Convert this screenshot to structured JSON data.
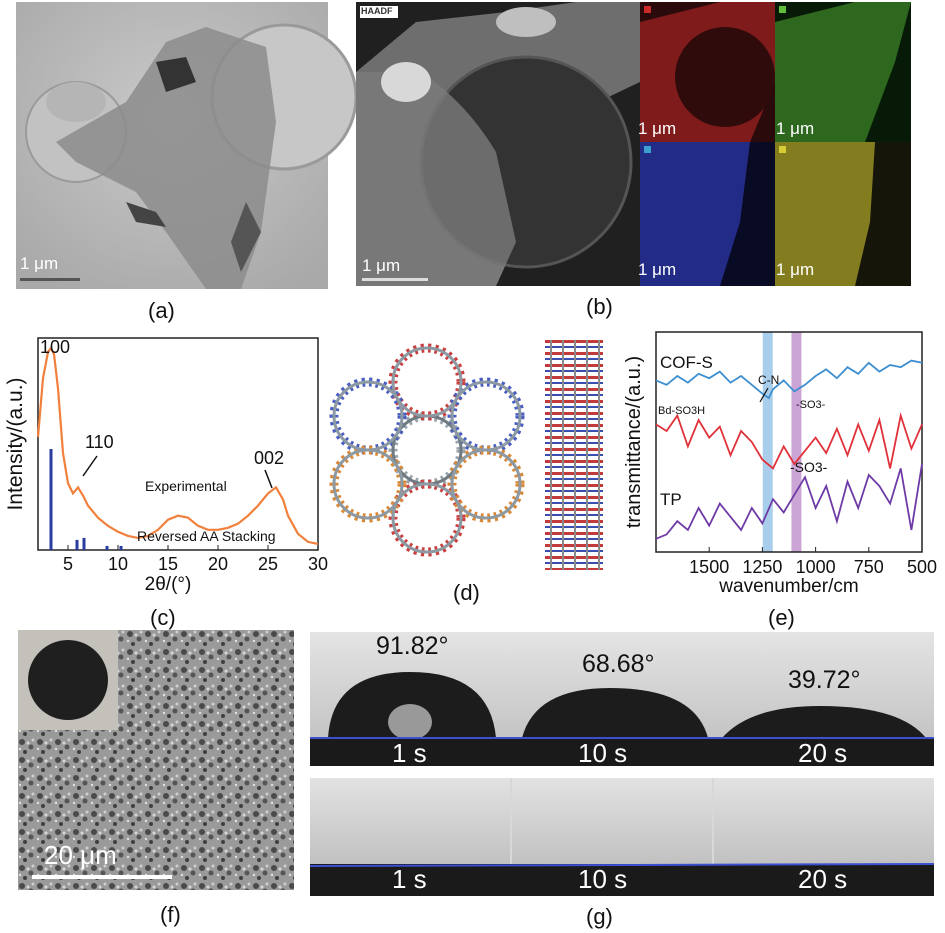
{
  "panels": {
    "a": {
      "label": "(a)",
      "scale": "1 μm"
    },
    "b": {
      "label": "(b)",
      "badge": "HAADF",
      "scale_main": "1 μm",
      "maps": [
        {
          "color": "#c92a2a",
          "scale": "1 μm"
        },
        {
          "color": "#5fbf3a",
          "scale": "1 μm"
        },
        {
          "color": "#3b4fd0",
          "scale": "1 μm"
        },
        {
          "color": "#d6cc35",
          "scale": "1 μm"
        }
      ]
    },
    "c": {
      "label": "(c)"
    },
    "d": {
      "label": "(d)"
    },
    "e": {
      "label": "(e)"
    },
    "f": {
      "label": "(f)",
      "scale": "20 μm"
    },
    "g": {
      "label": "(g)",
      "angles": [
        "91.82°",
        "68.68°",
        "39.72°"
      ],
      "times_top": [
        "1 s",
        "10 s",
        "20 s"
      ],
      "times_bottom": [
        "1 s",
        "10 s",
        "20 s"
      ]
    }
  },
  "chart_data": [
    {
      "type": "line",
      "panel": "c",
      "ylabel": "Intensity/(a.u.)",
      "xlabel": "2θ/(°)",
      "xlim": [
        2,
        30
      ],
      "xticks": [
        "5",
        "10",
        "15",
        "20",
        "25",
        "30"
      ],
      "series": [
        {
          "name": "Experimental",
          "color": "#f0803c",
          "x": [
            2.0,
            2.5,
            3.0,
            3.3,
            3.6,
            4.0,
            4.5,
            5.0,
            5.5,
            6.0,
            6.5,
            7.0,
            8.0,
            9.0,
            10.0,
            11.0,
            12.0,
            13.0,
            14.0,
            15.0,
            16.0,
            17.0,
            18.0,
            19.0,
            20.0,
            21.0,
            22.0,
            23.0,
            24.0,
            25.0,
            25.8,
            26.5,
            27.0,
            28.0,
            29.0,
            30.0
          ],
          "y": [
            0.56,
            0.85,
            0.98,
            1.0,
            0.97,
            0.8,
            0.48,
            0.33,
            0.28,
            0.31,
            0.27,
            0.22,
            0.16,
            0.12,
            0.09,
            0.07,
            0.06,
            0.07,
            0.1,
            0.15,
            0.17,
            0.16,
            0.12,
            0.1,
            0.1,
            0.11,
            0.13,
            0.17,
            0.22,
            0.28,
            0.31,
            0.25,
            0.17,
            0.08,
            0.04,
            0.03
          ]
        },
        {
          "name": "Reversed AA Stacking",
          "color": "#2a3d9e",
          "style": "stick",
          "x": [
            3.3,
            5.9,
            6.6,
            8.9,
            10.3
          ],
          "y": [
            0.5,
            0.05,
            0.06,
            0.02,
            0.02
          ]
        }
      ],
      "annotations": [
        "100",
        "110",
        "002",
        "Experimental",
        "Reversed AA Stacking"
      ]
    },
    {
      "type": "line",
      "panel": "e",
      "ylabel": "transmittance/(a.u.)",
      "xlabel": "wavenumber/cm",
      "xlim": [
        1750,
        500
      ],
      "xticks": [
        "1500",
        "1250",
        "1000",
        "750",
        "500"
      ],
      "highlight_bands": [
        {
          "center": 1225,
          "color": "#9ec9ea"
        },
        {
          "center": 1090,
          "color": "#c79bd3"
        }
      ],
      "series": [
        {
          "name": "COF-S",
          "color": "#3d8fd0",
          "x": [
            1750,
            1700,
            1650,
            1600,
            1550,
            1500,
            1450,
            1400,
            1350,
            1300,
            1250,
            1220,
            1200,
            1150,
            1100,
            1050,
            1000,
            950,
            900,
            850,
            800,
            750,
            700,
            650,
            600,
            550,
            500
          ],
          "y": [
            0.78,
            0.76,
            0.8,
            0.77,
            0.81,
            0.79,
            0.82,
            0.77,
            0.8,
            0.76,
            0.72,
            0.7,
            0.74,
            0.78,
            0.73,
            0.76,
            0.8,
            0.83,
            0.79,
            0.84,
            0.81,
            0.86,
            0.82,
            0.85,
            0.84,
            0.87,
            0.86
          ]
        },
        {
          "name": "Bd-SO3H",
          "color": "#e0323b",
          "x": [
            1750,
            1700,
            1650,
            1600,
            1550,
            1500,
            1450,
            1400,
            1350,
            1300,
            1250,
            1200,
            1150,
            1100,
            1050,
            1000,
            950,
            900,
            850,
            800,
            750,
            700,
            650,
            600,
            550,
            500
          ],
          "y": [
            0.58,
            0.55,
            0.62,
            0.48,
            0.6,
            0.52,
            0.57,
            0.44,
            0.55,
            0.5,
            0.42,
            0.38,
            0.48,
            0.4,
            0.46,
            0.52,
            0.45,
            0.56,
            0.44,
            0.58,
            0.46,
            0.6,
            0.38,
            0.62,
            0.47,
            0.58
          ]
        },
        {
          "name": "TP",
          "color": "#6e3aa6",
          "x": [
            1750,
            1700,
            1650,
            1600,
            1550,
            1500,
            1450,
            1400,
            1350,
            1300,
            1250,
            1200,
            1150,
            1100,
            1050,
            1000,
            950,
            900,
            850,
            800,
            750,
            700,
            650,
            600,
            550,
            500
          ],
          "y": [
            0.06,
            0.08,
            0.14,
            0.1,
            0.2,
            0.12,
            0.22,
            0.16,
            0.1,
            0.2,
            0.13,
            0.24,
            0.18,
            0.26,
            0.34,
            0.2,
            0.3,
            0.14,
            0.32,
            0.2,
            0.35,
            0.3,
            0.22,
            0.38,
            0.1,
            0.4
          ]
        }
      ],
      "annotations": [
        "COF-S",
        "Bd-SO3H",
        "TP",
        "C-N",
        "-SO3-",
        "-SO3-"
      ]
    }
  ]
}
